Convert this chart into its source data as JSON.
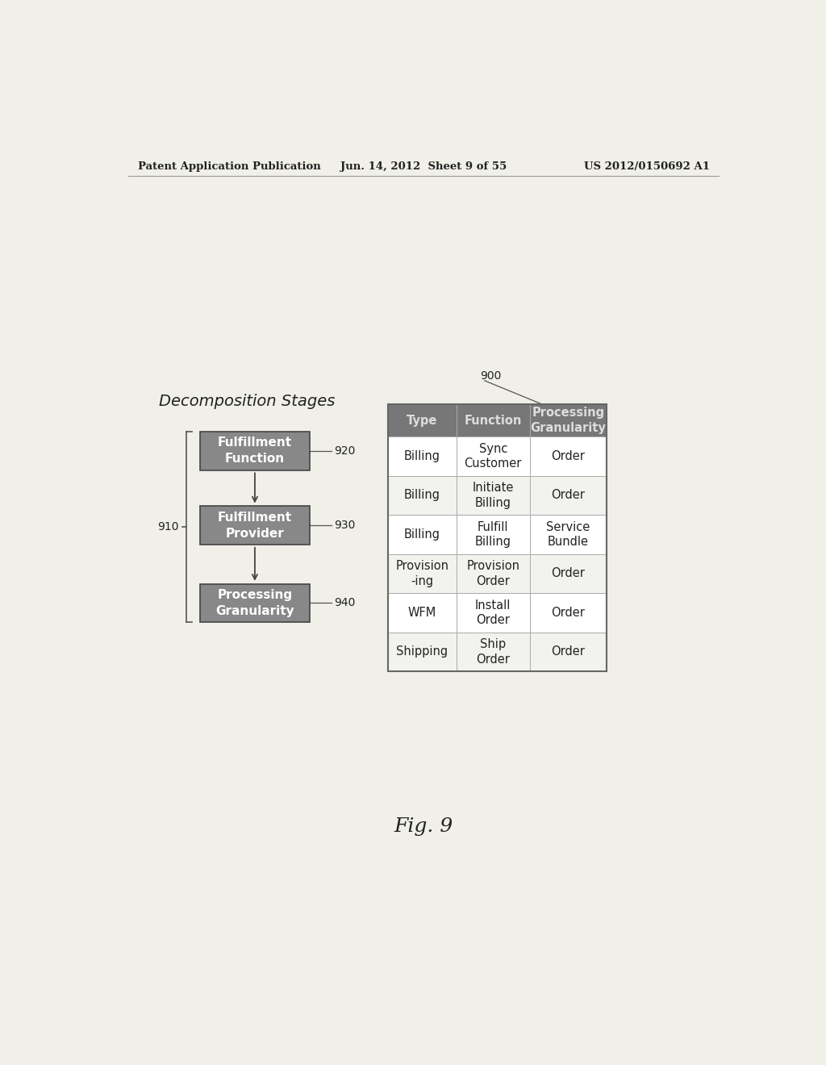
{
  "bg_color": "#f0efe8",
  "header_left": "Patent Application Publication",
  "header_center": "Jun. 14, 2012  Sheet 9 of 55",
  "header_right": "US 2012/0150692 A1",
  "decomp_title": "Decomposition Stages",
  "box1_label": "Fulfillment\nFunction",
  "box2_label": "Fulfillment\nProvider",
  "box3_label": "Processing\nGranularity",
  "num1": "920",
  "num2": "930",
  "num3": "940",
  "brace_label": "910",
  "table_label": "900",
  "table_headers": [
    "Type",
    "Function",
    "Processing\nGranularity"
  ],
  "table_rows": [
    [
      "Billing",
      "Sync\nCustomer",
      "Order"
    ],
    [
      "Billing",
      "Initiate\nBilling",
      "Order"
    ],
    [
      "Billing",
      "Fulfill\nBilling",
      "Service\nBundle"
    ],
    [
      "Provision\n-ing",
      "Provision\nOrder",
      "Order"
    ],
    [
      "WFM",
      "Install\nOrder",
      "Order"
    ],
    [
      "Shipping",
      "Ship\nOrder",
      "Order"
    ]
  ],
  "fig_label": "Fig. 9",
  "box_facecolor": "#888888",
  "box_edgecolor": "#444444",
  "box_text_color": "#ffffff",
  "header_bg": "#777777",
  "header_fg": "#dddddd",
  "row_bg_even": "#ffffff",
  "row_bg_odd": "#f2f2ee",
  "table_edge": "#666666",
  "text_dark": "#222222",
  "line_color": "#555555"
}
